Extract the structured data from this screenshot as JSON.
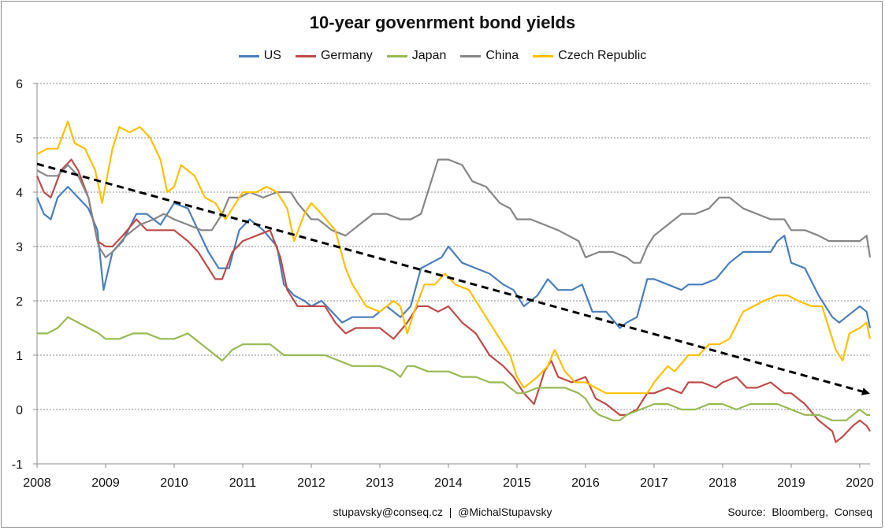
{
  "chart_data": {
    "type": "line",
    "title": "10-year govenrment bond yields",
    "xlabel": "",
    "ylabel": "",
    "xlim": [
      2008,
      2020.15
    ],
    "ylim": [
      -1,
      6
    ],
    "x_ticks": [
      "2008",
      "2009",
      "2010",
      "2011",
      "2012",
      "2013",
      "2014",
      "2015",
      "2016",
      "2017",
      "2018",
      "2019",
      "2020"
    ],
    "y_ticks": [
      "6",
      "5",
      "4",
      "3",
      "2",
      "1",
      "0",
      "-1"
    ],
    "grid": "horizontal dashed",
    "legend": "top-center",
    "series": [
      {
        "name": "US",
        "color": "#4a7ebb",
        "x": [
          2008.0,
          2008.1,
          2008.2,
          2008.3,
          2008.45,
          2008.6,
          2008.75,
          2008.88,
          2008.97,
          2009.1,
          2009.25,
          2009.45,
          2009.6,
          2009.8,
          2010.0,
          2010.2,
          2010.35,
          2010.5,
          2010.65,
          2010.8,
          2010.95,
          2011.1,
          2011.3,
          2011.5,
          2011.6,
          2011.75,
          2011.9,
          2012.0,
          2012.15,
          2012.3,
          2012.45,
          2012.6,
          2012.75,
          2012.9,
          2013.1,
          2013.3,
          2013.45,
          2013.6,
          2013.75,
          2013.9,
          2014.0,
          2014.2,
          2014.4,
          2014.6,
          2014.8,
          2014.95,
          2015.1,
          2015.3,
          2015.45,
          2015.6,
          2015.8,
          2015.95,
          2016.1,
          2016.3,
          2016.5,
          2016.6,
          2016.75,
          2016.9,
          2017.0,
          2017.2,
          2017.4,
          2017.5,
          2017.7,
          2017.9,
          2018.1,
          2018.3,
          2018.5,
          2018.7,
          2018.8,
          2018.9,
          2019.0,
          2019.2,
          2019.4,
          2019.6,
          2019.7,
          2019.8,
          2019.9,
          2020.0,
          2020.1,
          2020.15
        ],
        "y": [
          3.9,
          3.6,
          3.5,
          3.9,
          4.1,
          3.9,
          3.7,
          3.3,
          2.2,
          2.9,
          3.1,
          3.6,
          3.6,
          3.4,
          3.8,
          3.7,
          3.3,
          2.9,
          2.6,
          2.6,
          3.3,
          3.5,
          3.3,
          3.0,
          2.3,
          2.1,
          2.0,
          1.9,
          2.0,
          1.8,
          1.6,
          1.7,
          1.7,
          1.7,
          1.9,
          1.7,
          1.9,
          2.6,
          2.7,
          2.8,
          3.0,
          2.7,
          2.6,
          2.5,
          2.3,
          2.2,
          1.9,
          2.1,
          2.4,
          2.2,
          2.2,
          2.3,
          1.8,
          1.8,
          1.5,
          1.6,
          1.7,
          2.4,
          2.4,
          2.3,
          2.2,
          2.3,
          2.3,
          2.4,
          2.7,
          2.9,
          2.9,
          2.9,
          3.1,
          3.2,
          2.7,
          2.6,
          2.1,
          1.7,
          1.6,
          1.7,
          1.8,
          1.9,
          1.8,
          1.5
        ]
      },
      {
        "name": "Germany",
        "color": "#be4b48",
        "x": [
          2008.0,
          2008.1,
          2008.2,
          2008.35,
          2008.5,
          2008.6,
          2008.75,
          2008.88,
          2009.0,
          2009.1,
          2009.25,
          2009.45,
          2009.6,
          2009.8,
          2010.0,
          2010.2,
          2010.35,
          2010.5,
          2010.6,
          2010.7,
          2010.85,
          2011.0,
          2011.2,
          2011.4,
          2011.55,
          2011.65,
          2011.8,
          2012.0,
          2012.2,
          2012.35,
          2012.5,
          2012.65,
          2012.8,
          2013.0,
          2013.2,
          2013.4,
          2013.55,
          2013.7,
          2013.85,
          2014.0,
          2014.2,
          2014.4,
          2014.6,
          2014.8,
          2014.95,
          2015.1,
          2015.25,
          2015.4,
          2015.5,
          2015.6,
          2015.8,
          2016.0,
          2016.15,
          2016.3,
          2016.5,
          2016.6,
          2016.75,
          2016.9,
          2017.0,
          2017.2,
          2017.4,
          2017.5,
          2017.7,
          2017.9,
          2018.0,
          2018.2,
          2018.35,
          2018.5,
          2018.7,
          2018.9,
          2019.0,
          2019.2,
          2019.4,
          2019.6,
          2019.65,
          2019.75,
          2019.9,
          2020.0,
          2020.1,
          2020.15
        ],
        "y": [
          4.3,
          4.0,
          3.9,
          4.4,
          4.6,
          4.4,
          3.9,
          3.1,
          3.0,
          3.0,
          3.2,
          3.5,
          3.3,
          3.3,
          3.3,
          3.1,
          2.9,
          2.6,
          2.4,
          2.4,
          2.9,
          3.1,
          3.2,
          3.3,
          2.8,
          2.2,
          1.9,
          1.9,
          1.9,
          1.6,
          1.4,
          1.5,
          1.5,
          1.5,
          1.3,
          1.6,
          1.9,
          1.9,
          1.8,
          1.9,
          1.6,
          1.4,
          1.0,
          0.8,
          0.6,
          0.3,
          0.1,
          0.7,
          0.9,
          0.6,
          0.5,
          0.6,
          0.2,
          0.1,
          -0.1,
          -0.1,
          0.0,
          0.3,
          0.3,
          0.4,
          0.3,
          0.5,
          0.5,
          0.4,
          0.5,
          0.6,
          0.4,
          0.4,
          0.5,
          0.3,
          0.3,
          0.1,
          -0.2,
          -0.4,
          -0.6,
          -0.5,
          -0.3,
          -0.2,
          -0.3,
          -0.4
        ]
      },
      {
        "name": "Japan",
        "color": "#98b954",
        "x": [
          2008.0,
          2008.15,
          2008.3,
          2008.45,
          2008.6,
          2008.75,
          2008.9,
          2009.0,
          2009.2,
          2009.4,
          2009.6,
          2009.8,
          2010.0,
          2010.2,
          2010.4,
          2010.6,
          2010.7,
          2010.85,
          2011.0,
          2011.2,
          2011.4,
          2011.6,
          2011.8,
          2012.0,
          2012.2,
          2012.4,
          2012.6,
          2012.8,
          2013.0,
          2013.2,
          2013.3,
          2013.4,
          2013.5,
          2013.7,
          2013.9,
          2014.0,
          2014.2,
          2014.4,
          2014.6,
          2014.8,
          2015.0,
          2015.1,
          2015.3,
          2015.5,
          2015.7,
          2015.9,
          2016.0,
          2016.1,
          2016.2,
          2016.4,
          2016.5,
          2016.6,
          2016.8,
          2017.0,
          2017.2,
          2017.4,
          2017.6,
          2017.8,
          2018.0,
          2018.2,
          2018.4,
          2018.6,
          2018.8,
          2019.0,
          2019.2,
          2019.4,
          2019.6,
          2019.7,
          2019.8,
          2019.9,
          2020.0,
          2020.1,
          2020.15
        ],
        "y": [
          1.4,
          1.4,
          1.5,
          1.7,
          1.6,
          1.5,
          1.4,
          1.3,
          1.3,
          1.4,
          1.4,
          1.3,
          1.3,
          1.4,
          1.2,
          1.0,
          0.9,
          1.1,
          1.2,
          1.2,
          1.2,
          1.0,
          1.0,
          1.0,
          1.0,
          0.9,
          0.8,
          0.8,
          0.8,
          0.7,
          0.6,
          0.8,
          0.8,
          0.7,
          0.7,
          0.7,
          0.6,
          0.6,
          0.5,
          0.5,
          0.3,
          0.3,
          0.4,
          0.4,
          0.4,
          0.3,
          0.2,
          0.0,
          -0.1,
          -0.2,
          -0.2,
          -0.1,
          0.0,
          0.1,
          0.1,
          0.0,
          0.0,
          0.1,
          0.1,
          0.0,
          0.1,
          0.1,
          0.1,
          0.0,
          -0.1,
          -0.1,
          -0.2,
          -0.2,
          -0.2,
          -0.1,
          0.0,
          -0.1,
          -0.1
        ]
      },
      {
        "name": "China",
        "color": "#868686",
        "x": [
          2008.0,
          2008.15,
          2008.3,
          2008.45,
          2008.6,
          2008.75,
          2008.9,
          2009.0,
          2009.1,
          2009.3,
          2009.5,
          2009.7,
          2009.85,
          2010.0,
          2010.2,
          2010.4,
          2010.55,
          2010.7,
          2010.8,
          2010.95,
          2011.1,
          2011.3,
          2011.5,
          2011.7,
          2011.8,
          2012.0,
          2012.1,
          2012.3,
          2012.5,
          2012.7,
          2012.9,
          2013.1,
          2013.3,
          2013.45,
          2013.6,
          2013.75,
          2013.85,
          2014.0,
          2014.2,
          2014.35,
          2014.55,
          2014.75,
          2014.9,
          2015.0,
          2015.2,
          2015.4,
          2015.6,
          2015.75,
          2015.9,
          2016.0,
          2016.2,
          2016.4,
          2016.6,
          2016.7,
          2016.8,
          2016.9,
          2017.0,
          2017.2,
          2017.4,
          2017.6,
          2017.8,
          2017.95,
          2018.1,
          2018.3,
          2018.5,
          2018.7,
          2018.9,
          2019.0,
          2019.2,
          2019.4,
          2019.55,
          2019.7,
          2019.85,
          2020.0,
          2020.1,
          2020.15
        ],
        "y": [
          4.4,
          4.3,
          4.3,
          4.5,
          4.3,
          3.9,
          3.0,
          2.8,
          2.9,
          3.2,
          3.4,
          3.5,
          3.6,
          3.5,
          3.4,
          3.3,
          3.3,
          3.6,
          3.9,
          3.9,
          4.0,
          3.9,
          4.0,
          4.0,
          3.8,
          3.5,
          3.5,
          3.3,
          3.2,
          3.4,
          3.6,
          3.6,
          3.5,
          3.5,
          3.6,
          4.2,
          4.6,
          4.6,
          4.5,
          4.2,
          4.1,
          3.8,
          3.7,
          3.5,
          3.5,
          3.4,
          3.3,
          3.2,
          3.1,
          2.8,
          2.9,
          2.9,
          2.8,
          2.7,
          2.7,
          3.0,
          3.2,
          3.4,
          3.6,
          3.6,
          3.7,
          3.9,
          3.9,
          3.7,
          3.6,
          3.5,
          3.5,
          3.3,
          3.3,
          3.2,
          3.1,
          3.1,
          3.1,
          3.1,
          3.2,
          2.8
        ]
      },
      {
        "name": "Czech Republic",
        "color": "#ffc000",
        "x": [
          2008.0,
          2008.15,
          2008.3,
          2008.45,
          2008.55,
          2008.7,
          2008.85,
          2008.95,
          2009.1,
          2009.2,
          2009.35,
          2009.5,
          2009.65,
          2009.8,
          2009.9,
          2010.0,
          2010.1,
          2010.3,
          2010.45,
          2010.6,
          2010.75,
          2010.9,
          2011.0,
          2011.2,
          2011.35,
          2011.5,
          2011.65,
          2011.75,
          2011.9,
          2012.0,
          2012.15,
          2012.35,
          2012.5,
          2012.6,
          2012.8,
          2013.0,
          2013.2,
          2013.3,
          2013.4,
          2013.5,
          2013.65,
          2013.8,
          2013.95,
          2014.1,
          2014.3,
          2014.5,
          2014.7,
          2014.9,
          2015.0,
          2015.1,
          2015.2,
          2015.3,
          2015.45,
          2015.55,
          2015.7,
          2015.85,
          2016.0,
          2016.15,
          2016.3,
          2016.5,
          2016.7,
          2016.9,
          2017.0,
          2017.2,
          2017.3,
          2017.5,
          2017.65,
          2017.8,
          2017.95,
          2018.1,
          2018.3,
          2018.45,
          2018.6,
          2018.8,
          2018.95,
          2019.1,
          2019.3,
          2019.45,
          2019.55,
          2019.65,
          2019.75,
          2019.85,
          2020.0,
          2020.1,
          2020.15
        ],
        "y": [
          4.7,
          4.8,
          4.8,
          5.3,
          4.9,
          4.8,
          4.4,
          3.8,
          4.8,
          5.2,
          5.1,
          5.2,
          5.0,
          4.6,
          4.0,
          4.1,
          4.5,
          4.3,
          3.9,
          3.8,
          3.5,
          3.8,
          4.0,
          4.0,
          4.1,
          4.0,
          3.7,
          3.1,
          3.6,
          3.8,
          3.6,
          3.3,
          2.6,
          2.3,
          1.9,
          1.8,
          2.0,
          1.9,
          1.4,
          1.8,
          2.3,
          2.3,
          2.5,
          2.3,
          2.2,
          1.8,
          1.4,
          1.0,
          0.6,
          0.4,
          0.5,
          0.6,
          0.8,
          1.1,
          0.7,
          0.5,
          0.5,
          0.4,
          0.3,
          0.3,
          0.3,
          0.3,
          0.5,
          0.8,
          0.7,
          1.0,
          1.0,
          1.2,
          1.2,
          1.3,
          1.8,
          1.9,
          2.0,
          2.1,
          2.1,
          2.0,
          1.9,
          1.9,
          1.5,
          1.1,
          0.9,
          1.4,
          1.5,
          1.6,
          1.3
        ]
      }
    ],
    "trend_arrow": {
      "x": [
        2008.0,
        2020.15
      ],
      "y": [
        4.52,
        0.3
      ],
      "style": "dashed"
    }
  },
  "footer": {
    "contact": "stupavsky@conseq.cz  |  @MichalStupavsky",
    "source": "Source:  Bloomberg,  Conseq"
  }
}
